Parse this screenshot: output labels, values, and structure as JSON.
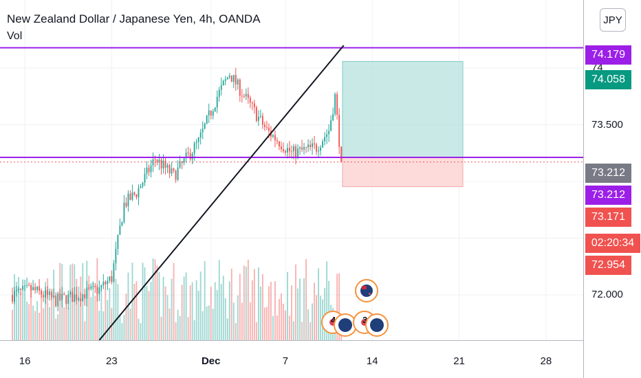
{
  "header": {
    "title": "New Zealand Dollar / Japanese Yen, 4h, OANDA",
    "volume_label": "Vol"
  },
  "currency_badge": "JPY",
  "price_axis": {
    "ticks": [
      {
        "label": "74",
        "value": 74.0
      },
      {
        "label": "73.500",
        "value": 73.5
      },
      {
        "label": "72.000",
        "value": 72.0
      }
    ]
  },
  "price_tags": [
    {
      "name": "resistance-line-tag",
      "label": "74.179",
      "value": 74.179,
      "color": "#9c1fe8"
    },
    {
      "name": "target-price-tag",
      "label": "74.058",
      "value": 74.058,
      "color": "#089981"
    },
    {
      "name": "entry-price-tag",
      "label": "73.212",
      "value": 73.212,
      "color": "#787b86"
    },
    {
      "name": "support-line-tag",
      "label": "73.212",
      "value": 73.212,
      "color": "#9c1fe8"
    },
    {
      "name": "last-price-tag",
      "label": "73.171",
      "value": 73.171,
      "color": "#f0524f"
    },
    {
      "name": "countdown-tag",
      "label": "02:20:34",
      "value": 73.171,
      "color": "#f0524f"
    },
    {
      "name": "stop-price-tag",
      "label": "72.954",
      "value": 72.954,
      "color": "#f0524f"
    }
  ],
  "time_axis": {
    "ticks": [
      {
        "label": "16",
        "bold": false,
        "day": 16
      },
      {
        "label": "23",
        "bold": false,
        "day": 23
      },
      {
        "label": "Dec",
        "bold": true,
        "day": 31
      },
      {
        "label": "7",
        "bold": false,
        "day": 37
      },
      {
        "label": "14",
        "bold": false,
        "day": 44
      },
      {
        "label": "21",
        "bold": false,
        "day": 51
      },
      {
        "label": "28",
        "bold": false,
        "day": 58
      }
    ]
  },
  "events": {
    "cluster_1_count": "4",
    "cluster_2_count": "3"
  },
  "colors": {
    "up": "#26a69a",
    "down": "#ef5350",
    "horizontal_line": "#9c1fe8",
    "target_zone": "#b2dfdb",
    "stop_zone": "#fcd2d2"
  },
  "chart_data": {
    "type": "candlestick",
    "symbol": "NZDJPY",
    "timeframe": "4h",
    "ylim": [
      71.6,
      74.6
    ],
    "levels": {
      "resistance": 74.179,
      "support": 73.212,
      "last": 73.171
    },
    "position": {
      "entry": 73.212,
      "target": 74.058,
      "stop": 72.954
    },
    "waypoints": [
      {
        "day": 15.0,
        "price": 72.0
      },
      {
        "day": 16.5,
        "price": 72.05
      },
      {
        "day": 18.5,
        "price": 71.95
      },
      {
        "day": 20.5,
        "price": 72.0
      },
      {
        "day": 22.0,
        "price": 72.05
      },
      {
        "day": 23.0,
        "price": 72.15
      },
      {
        "day": 24.0,
        "price": 72.8
      },
      {
        "day": 25.0,
        "price": 72.9
      },
      {
        "day": 26.5,
        "price": 73.2
      },
      {
        "day": 28.0,
        "price": 73.05
      },
      {
        "day": 30.0,
        "price": 73.35
      },
      {
        "day": 31.5,
        "price": 73.75
      },
      {
        "day": 32.5,
        "price": 73.95
      },
      {
        "day": 34.0,
        "price": 73.7
      },
      {
        "day": 35.5,
        "price": 73.45
      },
      {
        "day": 37.5,
        "price": 73.25
      },
      {
        "day": 39.5,
        "price": 73.3
      },
      {
        "day": 40.5,
        "price": 73.45
      },
      {
        "day": 41.0,
        "price": 73.75
      },
      {
        "day": 41.5,
        "price": 73.171
      }
    ]
  }
}
